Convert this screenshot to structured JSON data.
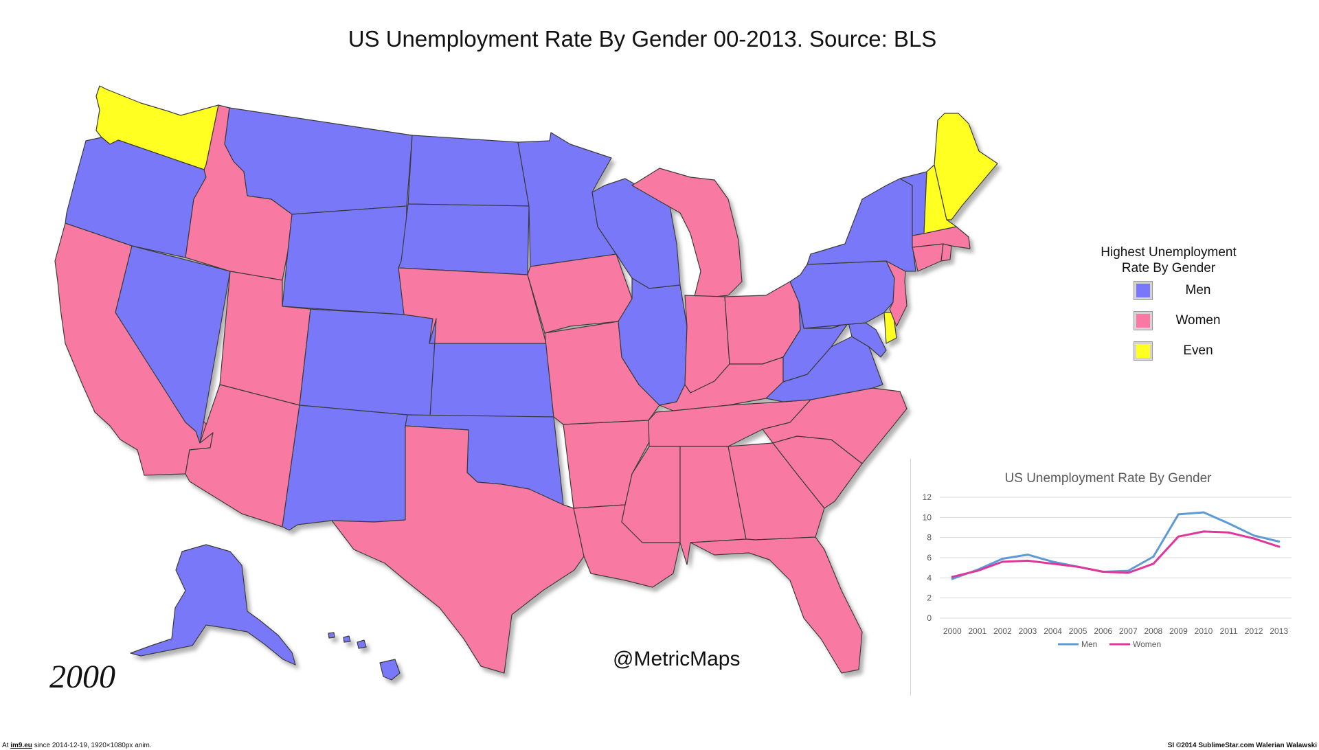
{
  "title": "US Unemployment Rate By Gender 00-2013.  Source: BLS",
  "year": "2000",
  "credit": "@MetricMaps",
  "colors": {
    "men": "#7878f8",
    "women": "#f87aa2",
    "even": "#ffff22",
    "border": "#3a3a3a",
    "shadow": "#b5b5b5"
  },
  "legend": {
    "title_line1": "Highest Unemployment",
    "title_line2": "Rate By Gender",
    "items": [
      {
        "label": "Men",
        "color": "#7878f8"
      },
      {
        "label": "Women",
        "color": "#f87aa2"
      },
      {
        "label": "Even",
        "color": "#ffff22"
      }
    ]
  },
  "states": [
    {
      "name": "WA",
      "category": "even"
    },
    {
      "name": "OR",
      "category": "men"
    },
    {
      "name": "CA",
      "category": "women"
    },
    {
      "name": "ID",
      "category": "women"
    },
    {
      "name": "NV",
      "category": "men"
    },
    {
      "name": "MT",
      "category": "men"
    },
    {
      "name": "WY",
      "category": "men"
    },
    {
      "name": "UT",
      "category": "women"
    },
    {
      "name": "AZ",
      "category": "women"
    },
    {
      "name": "CO",
      "category": "men"
    },
    {
      "name": "NM",
      "category": "men"
    },
    {
      "name": "ND",
      "category": "men"
    },
    {
      "name": "SD",
      "category": "men"
    },
    {
      "name": "NE",
      "category": "women"
    },
    {
      "name": "KS",
      "category": "men"
    },
    {
      "name": "OK",
      "category": "men"
    },
    {
      "name": "TX",
      "category": "women"
    },
    {
      "name": "MN",
      "category": "men"
    },
    {
      "name": "IA",
      "category": "women"
    },
    {
      "name": "MO",
      "category": "women"
    },
    {
      "name": "AR",
      "category": "women"
    },
    {
      "name": "LA",
      "category": "women"
    },
    {
      "name": "WI",
      "category": "men"
    },
    {
      "name": "IL",
      "category": "men"
    },
    {
      "name": "MI",
      "category": "women"
    },
    {
      "name": "IN",
      "category": "women"
    },
    {
      "name": "OH",
      "category": "women"
    },
    {
      "name": "KY",
      "category": "women"
    },
    {
      "name": "TN",
      "category": "women"
    },
    {
      "name": "MS",
      "category": "women"
    },
    {
      "name": "AL",
      "category": "women"
    },
    {
      "name": "GA",
      "category": "women"
    },
    {
      "name": "FL",
      "category": "women"
    },
    {
      "name": "SC",
      "category": "women"
    },
    {
      "name": "NC",
      "category": "women"
    },
    {
      "name": "VA",
      "category": "men"
    },
    {
      "name": "WV",
      "category": "men"
    },
    {
      "name": "MD",
      "category": "men"
    },
    {
      "name": "DE",
      "category": "even"
    },
    {
      "name": "PA",
      "category": "men"
    },
    {
      "name": "NJ",
      "category": "women"
    },
    {
      "name": "NY",
      "category": "men"
    },
    {
      "name": "CT",
      "category": "women"
    },
    {
      "name": "RI",
      "category": "women"
    },
    {
      "name": "MA",
      "category": "women"
    },
    {
      "name": "VT",
      "category": "men"
    },
    {
      "name": "NH",
      "category": "even"
    },
    {
      "name": "ME",
      "category": "even"
    },
    {
      "name": "AK",
      "category": "men"
    },
    {
      "name": "HI",
      "category": "men"
    }
  ],
  "chart_data": {
    "type": "line",
    "title": "US Unemployment Rate By Gender",
    "x": [
      "2000",
      "2001",
      "2002",
      "2003",
      "2004",
      "2005",
      "2006",
      "2007",
      "2008",
      "2009",
      "2010",
      "2011",
      "2012",
      "2013"
    ],
    "ylim": [
      0,
      12
    ],
    "yticks": [
      "0",
      "2",
      "4",
      "6",
      "8",
      "10",
      "12"
    ],
    "grid": true,
    "legend_position": "bottom",
    "series": [
      {
        "name": "Men",
        "color": "#5b9bd5",
        "values": [
          3.9,
          4.8,
          5.9,
          6.3,
          5.6,
          5.1,
          4.6,
          4.7,
          6.1,
          10.3,
          10.5,
          9.4,
          8.2,
          7.6
        ]
      },
      {
        "name": "Women",
        "color": "#e0369b",
        "values": [
          4.1,
          4.7,
          5.6,
          5.7,
          5.4,
          5.1,
          4.6,
          4.5,
          5.4,
          8.1,
          8.6,
          8.5,
          7.9,
          7.1
        ]
      }
    ]
  },
  "footer": {
    "left_prefix": "At ",
    "left_site": "im9.eu",
    "left_suffix": " since 2014-12-19, 1920×1080px anim.",
    "right": "SI ©2014 SublimeStar.com Walerian Walawski"
  }
}
